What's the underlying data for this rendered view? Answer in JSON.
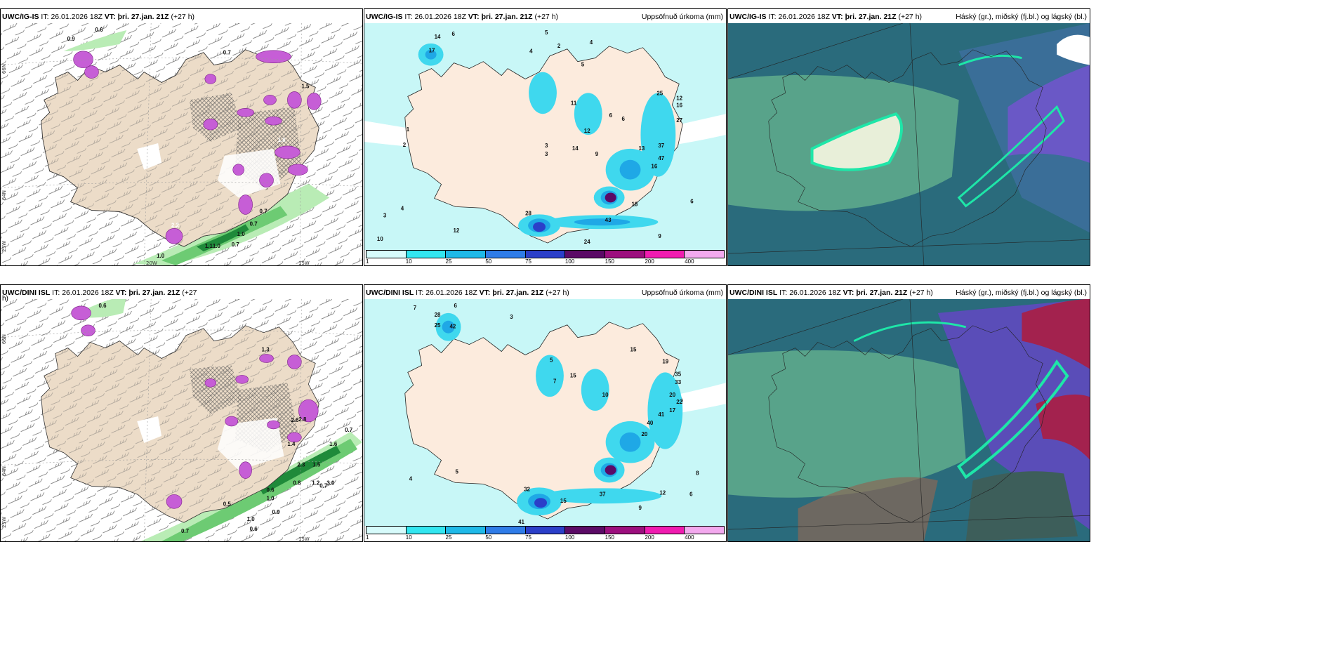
{
  "panels": {
    "r1c1": {
      "model": "UWC/IG-IS",
      "it_label": "IT:",
      "it": "26.01.2026 18Z",
      "vt_label": "VT:",
      "vt": "þri. 27.jan. 21Z",
      "lead": "(+27 h)"
    },
    "r1c2": {
      "model": "UWC/IG-IS",
      "it_label": "IT:",
      "it": "26.01.2026 18Z",
      "vt_label": "VT:",
      "vt": "þri. 27.jan. 21Z",
      "lead": "(+27 h)",
      "right": "Uppsöfnuð úrkoma (mm)"
    },
    "r1c3": {
      "model": "UWC/IG-IS",
      "it_label": "IT:",
      "it": "26.01.2026 18Z",
      "vt_label": "VT:",
      "vt": "þri. 27.jan. 21Z",
      "lead": "(+27 h)",
      "right": "Háský (gr.), miðský (fj.bl.) og lágský (bl.)"
    },
    "r2c1": {
      "model": "UWC/DINI ISL",
      "it_label": "IT:",
      "it": "26.01.2026 18Z",
      "vt_label": "VT:",
      "vt": "þri. 27.jan. 21Z",
      "lead": "(+27",
      "lead2": "h)"
    },
    "r2c2": {
      "model": "UWC/DINI ISL",
      "it_label": "IT:",
      "it": "26.01.2026 18Z",
      "vt_label": "VT:",
      "vt": "þri. 27.jan. 21Z",
      "lead": "(+27 h)",
      "right": "Uppsöfnuð úrkoma (mm)"
    },
    "r2c3": {
      "model": "UWC/DINI ISL",
      "it_label": "IT:",
      "it": "26.01.2026 18Z",
      "vt_label": "VT:",
      "vt": "þri. 27.jan. 21Z",
      "lead": "(+27 h)",
      "right": "Háský (gr.), miðský (fj.bl.) og lágský (bl.)"
    }
  },
  "gridlabels": {
    "lat66": "66N",
    "lat64": "64N",
    "lat63": "63N",
    "lon20": "20W",
    "lon15": "15W",
    "lon25": "25W"
  },
  "colorbar": {
    "labels": [
      "1",
      "10",
      "25",
      "50",
      "75",
      "100",
      "150",
      "200",
      "400"
    ],
    "colors": [
      "#d7fbfb",
      "#33e6f0",
      "#1fb9e8",
      "#2f7ce8",
      "#2b3fc9",
      "#5b0a66",
      "#9c0f7e",
      "#f01cb0",
      "#f3a9ee"
    ]
  },
  "values": {
    "r1c1": [
      "0.6",
      "0.7",
      "0.7",
      "0.7",
      "1.0",
      "1.0",
      "1.1",
      "0.7",
      "1.0",
      "1.5",
      "0.9",
      "2.2",
      "1.8"
    ],
    "r1c2": [
      "14",
      "17",
      "6",
      "5",
      "4",
      "4",
      "2",
      "1",
      "2",
      "5",
      "6",
      "6",
      "11",
      "12",
      "14",
      "3",
      "9",
      "13",
      "25",
      "12",
      "16",
      "27",
      "37",
      "47",
      "16",
      "43",
      "18",
      "24",
      "12",
      "10",
      "4",
      "3",
      "9",
      "6",
      "28",
      "3"
    ],
    "r2c1": [
      "0.6",
      "1.3",
      "2.8",
      "1.4",
      "0.7",
      "1.6",
      "2.3",
      "1.5",
      "1.2",
      "0.8",
      "0.5",
      "0.6",
      "0.7",
      "1.0",
      "0.9",
      "1.0",
      "0.6",
      "0.7",
      "2.6",
      "3.0"
    ],
    "r2c2": [
      "28",
      "25",
      "42",
      "7",
      "6",
      "3",
      "5",
      "7",
      "15",
      "10",
      "19",
      "15",
      "35",
      "33",
      "20",
      "22",
      "41",
      "17",
      "40",
      "20",
      "37",
      "15",
      "12",
      "32",
      "41",
      "9",
      "6",
      "8",
      "4",
      "5"
    ]
  }
}
